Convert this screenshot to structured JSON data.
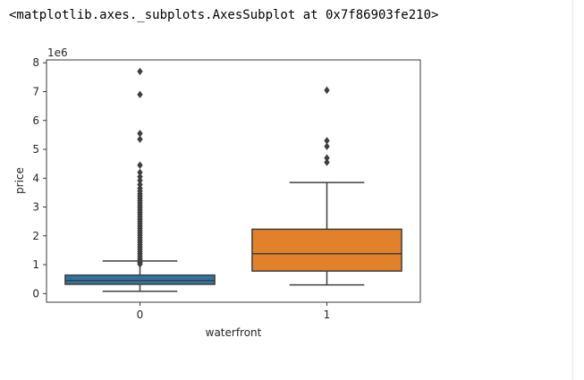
{
  "output": {
    "repr": "<matplotlib.axes._subplots.AxesSubplot at 0x7f86903fe210>"
  },
  "chart_data": {
    "type": "box",
    "title": "",
    "xlabel": "waterfront",
    "ylabel": "price",
    "y_offset_label": "1e6",
    "ylim": [
      -0.3,
      8.1
    ],
    "yticks": [
      0,
      1,
      2,
      3,
      4,
      5,
      6,
      7,
      8
    ],
    "ytick_labels": [
      "0",
      "1",
      "2",
      "3",
      "4",
      "5",
      "6",
      "7",
      "8"
    ],
    "categories": [
      "0",
      "1"
    ],
    "grid": false,
    "boxes": [
      {
        "category": "0",
        "color": "#3274a1",
        "whisker_low": 0.08,
        "q1": 0.32,
        "median": 0.45,
        "q3": 0.64,
        "whisker_high": 1.13,
        "outliers": [
          1.02,
          1.08,
          1.15,
          1.22,
          1.3,
          1.38,
          1.46,
          1.54,
          1.62,
          1.7,
          1.78,
          1.86,
          1.94,
          2.02,
          2.1,
          2.18,
          2.26,
          2.34,
          2.42,
          2.5,
          2.58,
          2.66,
          2.74,
          2.82,
          2.9,
          2.98,
          3.06,
          3.14,
          3.22,
          3.3,
          3.38,
          3.46,
          3.55,
          3.65,
          3.78,
          3.92,
          4.05,
          4.2,
          4.45,
          5.35,
          5.55,
          6.9,
          7.7
        ]
      },
      {
        "category": "1",
        "color": "#e1812c",
        "whisker_low": 0.3,
        "q1": 0.78,
        "median": 1.38,
        "q3": 2.23,
        "whisker_high": 3.85,
        "outliers": [
          4.55,
          4.7,
          5.1,
          5.3,
          7.05
        ]
      }
    ]
  }
}
